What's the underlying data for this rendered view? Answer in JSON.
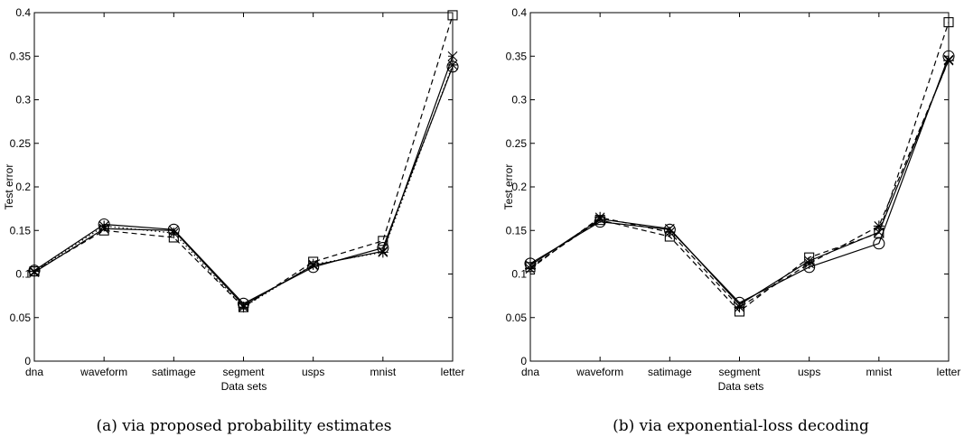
{
  "chart_data": [
    {
      "type": "line",
      "caption": "(a) via proposed probability estimates",
      "xlabel": "Data sets",
      "ylabel": "Test error",
      "categories": [
        "dna",
        "waveform",
        "satimage",
        "segment",
        "usps",
        "mnist",
        "letter"
      ],
      "ylim": [
        0,
        0.4
      ],
      "yticks": [
        "0",
        "0.05",
        "0.1",
        "0.15",
        "0.2",
        "0.25",
        "0.3",
        "0.35",
        "0.4"
      ],
      "series": [
        {
          "marker": "circle",
          "line": "solid",
          "values": [
            0.104,
            0.157,
            0.151,
            0.066,
            0.108,
            0.13,
            0.338
          ]
        },
        {
          "marker": "x",
          "line": "solid",
          "values": [
            0.102,
            0.152,
            0.15,
            0.064,
            0.11,
            0.126,
            0.35
          ]
        },
        {
          "marker": "square",
          "line": "dashed",
          "values": [
            0.103,
            0.15,
            0.142,
            0.062,
            0.114,
            0.138,
            0.397
          ]
        },
        {
          "marker": "star",
          "line": "dotted",
          "values": [
            0.103,
            0.155,
            0.147,
            0.062,
            0.111,
            0.125,
            0.34
          ]
        }
      ]
    },
    {
      "type": "line",
      "caption": "(b) via exponential-loss decoding",
      "xlabel": "Data sets",
      "ylabel": "Test error",
      "categories": [
        "dna",
        "waveform",
        "satimage",
        "segment",
        "usps",
        "mnist",
        "letter"
      ],
      "ylim": [
        0,
        0.4
      ],
      "yticks": [
        "0",
        "0.05",
        "0.1",
        "0.15",
        "0.2",
        "0.25",
        "0.3",
        "0.35",
        "0.4"
      ],
      "series": [
        {
          "marker": "circle",
          "line": "solid",
          "values": [
            0.112,
            0.16,
            0.151,
            0.067,
            0.108,
            0.135,
            0.35
          ]
        },
        {
          "marker": "x",
          "line": "solid",
          "values": [
            0.11,
            0.163,
            0.152,
            0.065,
            0.115,
            0.148,
            0.346
          ]
        },
        {
          "marker": "square",
          "line": "dashed",
          "values": [
            0.108,
            0.162,
            0.143,
            0.057,
            0.119,
            0.147,
            0.389
          ]
        },
        {
          "marker": "star",
          "line": "dashed",
          "values": [
            0.106,
            0.165,
            0.148,
            0.062,
            0.112,
            0.155,
            0.345
          ]
        }
      ]
    }
  ]
}
